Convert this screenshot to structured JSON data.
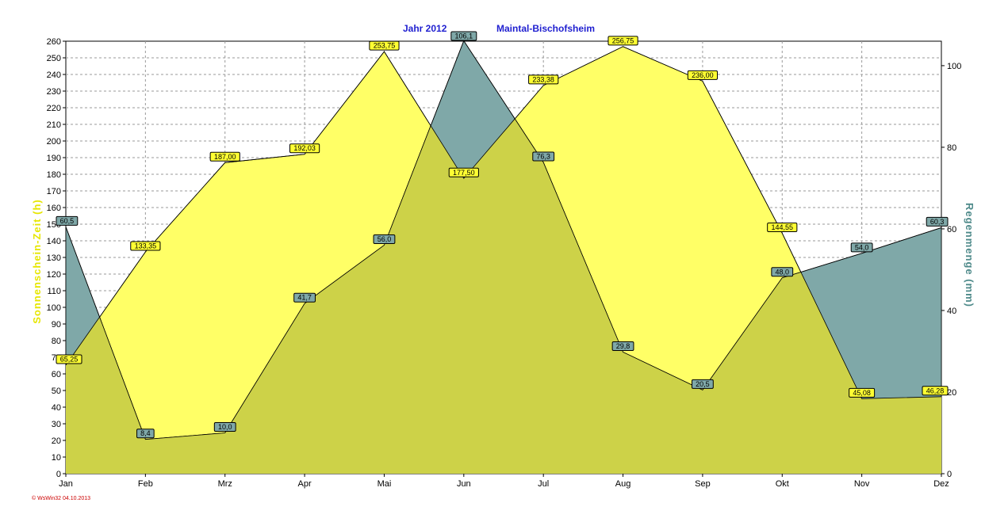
{
  "chart_data": {
    "type": "area",
    "title_left": "Jahr  2012",
    "title_right": "Maintal-Bischofsheim",
    "ylabel_left": "Sonnenschein-Zeit (h)",
    "ylabel_right": "Regenmenge  (mm)",
    "categories": [
      "Jan",
      "Feb",
      "Mrz",
      "Apr",
      "Mai",
      "Jun",
      "Jul",
      "Aug",
      "Sep",
      "Okt",
      "Nov",
      "Dez"
    ],
    "y_left_range": [
      0,
      260
    ],
    "y_left_ticks": [
      "0",
      "10",
      "20",
      "30",
      "40",
      "50",
      "60",
      "70",
      "80",
      "90",
      "100",
      "110",
      "120",
      "130",
      "140",
      "150",
      "160",
      "170",
      "180",
      "190",
      "200",
      "210",
      "220",
      "230",
      "240",
      "250",
      "260"
    ],
    "y_right_range": [
      0,
      106
    ],
    "y_right_ticks": [
      "0",
      "20",
      "40",
      "60",
      "80",
      "100"
    ],
    "grid": true,
    "series": [
      {
        "axis": "left",
        "color": "#ffff66",
        "values": [
          65.25,
          133.35,
          187.0,
          192.03,
          253.75,
          177.5,
          233.38,
          256.75,
          236.0,
          144.55,
          45.08,
          46.28
        ],
        "labels": [
          "65,25",
          "133,35",
          "187,00",
          "192,03",
          "253,75",
          "177,50",
          "233,38",
          "256,75",
          "236,00",
          "144,55",
          "45,08",
          "46,28"
        ]
      },
      {
        "axis": "right",
        "color": "#7fa8a8",
        "values": [
          60.5,
          8.4,
          10.0,
          41.7,
          56.0,
          106.1,
          76.3,
          29.8,
          20.5,
          48.0,
          54.0,
          60.3
        ],
        "labels": [
          "60,5",
          "8,4",
          "10,0",
          "41,7",
          "56,0",
          "106,1",
          "76,3",
          "29,8",
          "20,5",
          "48,0",
          "54,0",
          "60,3"
        ]
      }
    ]
  },
  "footer": "© WsWin32  04.10.2013"
}
